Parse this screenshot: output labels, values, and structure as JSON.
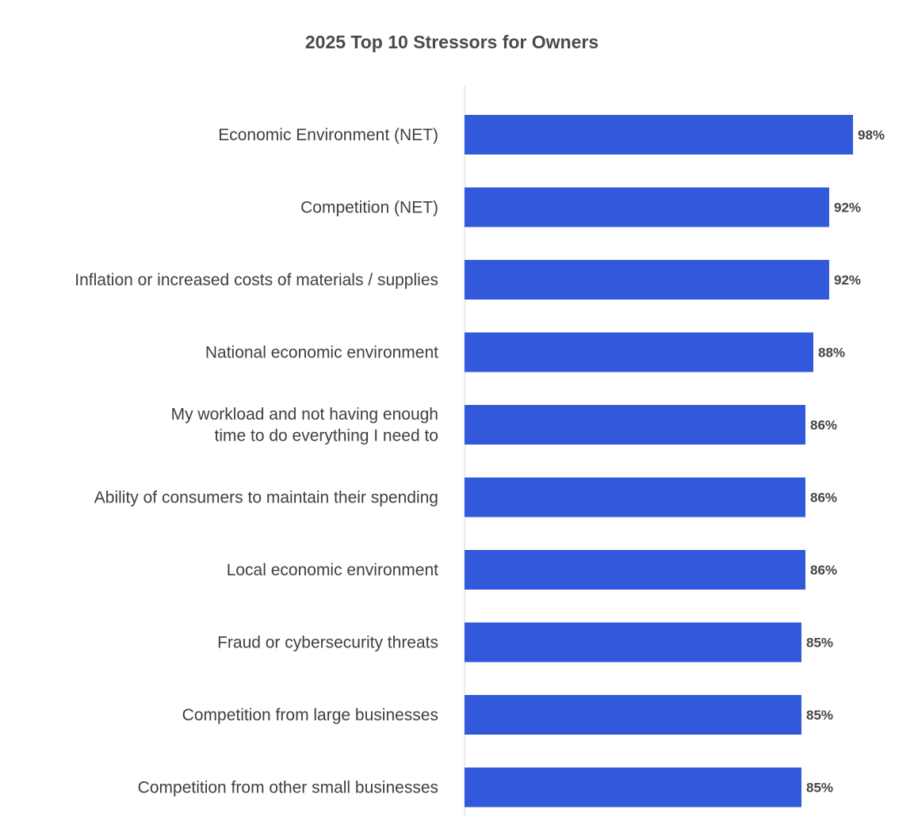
{
  "chart_data": {
    "type": "bar",
    "orientation": "horizontal",
    "title": "2025 Top 10 Stressors for Owners",
    "categories": [
      [
        "Economic Environment (NET)"
      ],
      [
        "Competition (NET)"
      ],
      [
        "Inflation or increased costs of materials / supplies"
      ],
      [
        "National economic environment"
      ],
      [
        "My workload and not having enough",
        "time to do everything I need to"
      ],
      [
        "Ability of consumers to maintain their spending"
      ],
      [
        "Local economic environment"
      ],
      [
        "Fraud or cybersecurity threats"
      ],
      [
        "Competition from large businesses"
      ],
      [
        "Competition from other small businesses"
      ]
    ],
    "values": [
      98,
      92,
      92,
      88,
      86,
      86,
      86,
      85,
      85,
      85
    ],
    "value_labels": [
      "98%",
      "92%",
      "92%",
      "88%",
      "86%",
      "86%",
      "86%",
      "85%",
      "85%",
      "85%"
    ],
    "xlim": [
      0,
      100
    ],
    "bar_color": "#3259db",
    "axis_color": "#d9d9d9",
    "grid": false,
    "legend": "none"
  }
}
